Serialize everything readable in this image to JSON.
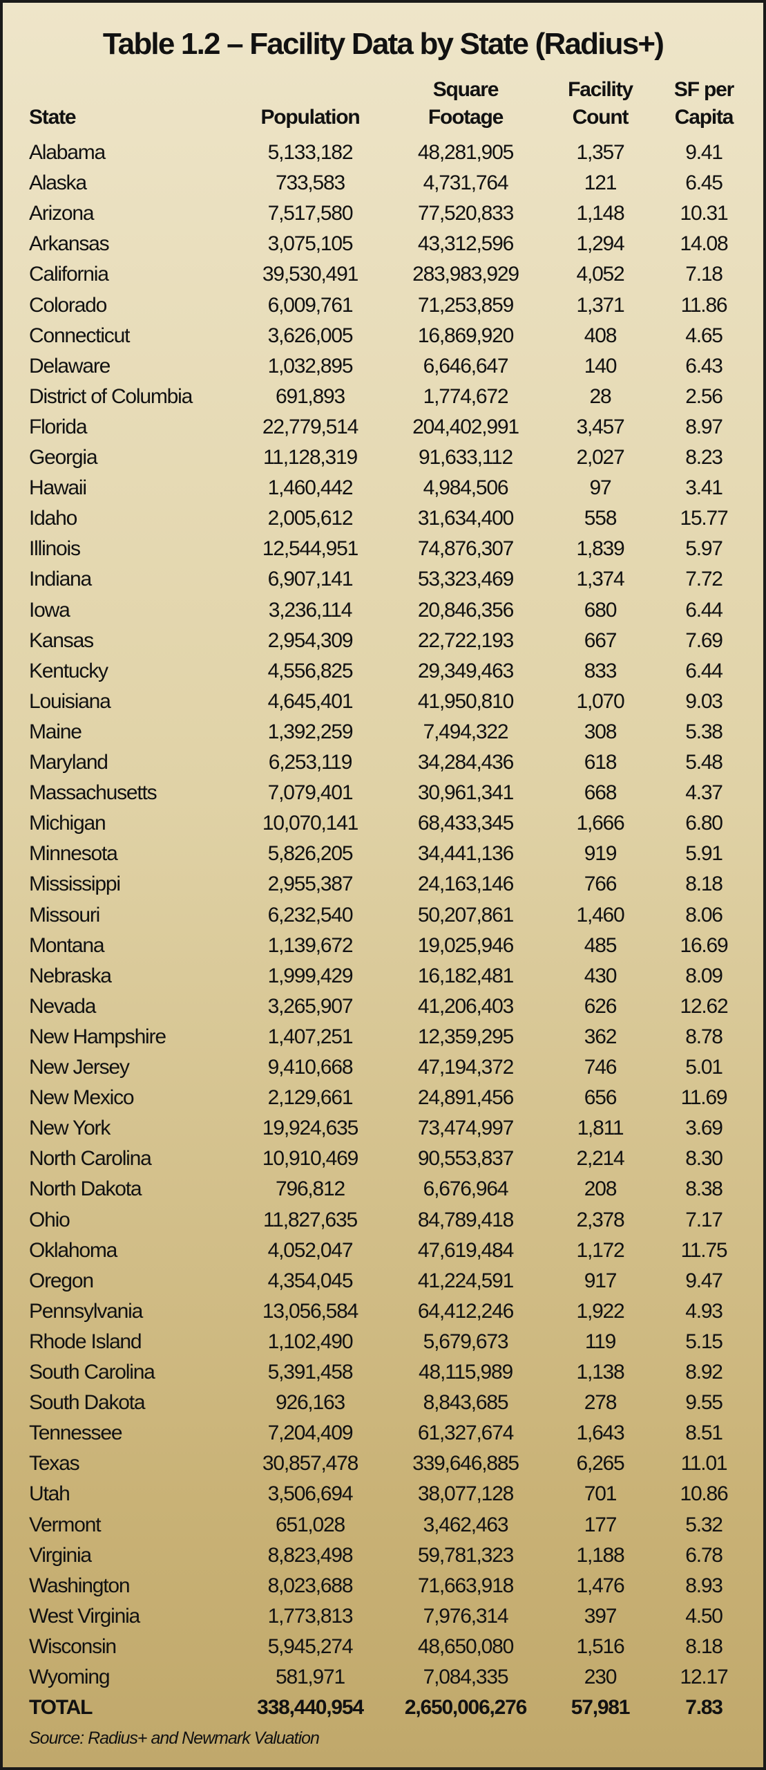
{
  "title": "Table 1.2 – Facility Data by State (Radius+)",
  "headers": {
    "state": "State",
    "population": "Population",
    "square_footage": [
      "Square",
      "Footage"
    ],
    "facility_count": [
      "Facility",
      "Count"
    ],
    "sf_per_capita": [
      "SF per",
      "Capita"
    ]
  },
  "rows": [
    [
      "Alabama",
      "5,133,182",
      "48,281,905",
      "1,357",
      "9.41"
    ],
    [
      "Alaska",
      "733,583",
      "4,731,764",
      "121",
      "6.45"
    ],
    [
      "Arizona",
      "7,517,580",
      "77,520,833",
      "1,148",
      "10.31"
    ],
    [
      "Arkansas",
      "3,075,105",
      "43,312,596",
      "1,294",
      "14.08"
    ],
    [
      "California",
      "39,530,491",
      "283,983,929",
      "4,052",
      "7.18"
    ],
    [
      "Colorado",
      "6,009,761",
      "71,253,859",
      "1,371",
      "11.86"
    ],
    [
      "Connecticut",
      "3,626,005",
      "16,869,920",
      "408",
      "4.65"
    ],
    [
      "Delaware",
      "1,032,895",
      "6,646,647",
      "140",
      "6.43"
    ],
    [
      "District of Columbia",
      "691,893",
      "1,774,672",
      "28",
      "2.56"
    ],
    [
      "Florida",
      "22,779,514",
      "204,402,991",
      "3,457",
      "8.97"
    ],
    [
      "Georgia",
      "11,128,319",
      "91,633,112",
      "2,027",
      "8.23"
    ],
    [
      "Hawaii",
      "1,460,442",
      "4,984,506",
      "97",
      "3.41"
    ],
    [
      "Idaho",
      "2,005,612",
      "31,634,400",
      "558",
      "15.77"
    ],
    [
      "Illinois",
      "12,544,951",
      "74,876,307",
      "1,839",
      "5.97"
    ],
    [
      "Indiana",
      "6,907,141",
      "53,323,469",
      "1,374",
      "7.72"
    ],
    [
      "Iowa",
      "3,236,114",
      "20,846,356",
      "680",
      "6.44"
    ],
    [
      "Kansas",
      "2,954,309",
      "22,722,193",
      "667",
      "7.69"
    ],
    [
      "Kentucky",
      "4,556,825",
      "29,349,463",
      "833",
      "6.44"
    ],
    [
      "Louisiana",
      "4,645,401",
      "41,950,810",
      "1,070",
      "9.03"
    ],
    [
      "Maine",
      "1,392,259",
      "7,494,322",
      "308",
      "5.38"
    ],
    [
      "Maryland",
      "6,253,119",
      "34,284,436",
      "618",
      "5.48"
    ],
    [
      "Massachusetts",
      "7,079,401",
      "30,961,341",
      "668",
      "4.37"
    ],
    [
      "Michigan",
      "10,070,141",
      "68,433,345",
      "1,666",
      "6.80"
    ],
    [
      "Minnesota",
      "5,826,205",
      "34,441,136",
      "919",
      "5.91"
    ],
    [
      "Mississippi",
      "2,955,387",
      "24,163,146",
      "766",
      "8.18"
    ],
    [
      "Missouri",
      "6,232,540",
      "50,207,861",
      "1,460",
      "8.06"
    ],
    [
      "Montana",
      "1,139,672",
      "19,025,946",
      "485",
      "16.69"
    ],
    [
      "Nebraska",
      "1,999,429",
      "16,182,481",
      "430",
      "8.09"
    ],
    [
      "Nevada",
      "3,265,907",
      "41,206,403",
      "626",
      "12.62"
    ],
    [
      "New Hampshire",
      "1,407,251",
      "12,359,295",
      "362",
      "8.78"
    ],
    [
      "New Jersey",
      "9,410,668",
      "47,194,372",
      "746",
      "5.01"
    ],
    [
      "New Mexico",
      "2,129,661",
      "24,891,456",
      "656",
      "11.69"
    ],
    [
      "New York",
      "19,924,635",
      "73,474,997",
      "1,811",
      "3.69"
    ],
    [
      "North Carolina",
      "10,910,469",
      "90,553,837",
      "2,214",
      "8.30"
    ],
    [
      "North Dakota",
      "796,812",
      "6,676,964",
      "208",
      "8.38"
    ],
    [
      "Ohio",
      "11,827,635",
      "84,789,418",
      "2,378",
      "7.17"
    ],
    [
      "Oklahoma",
      "4,052,047",
      "47,619,484",
      "1,172",
      "11.75"
    ],
    [
      "Oregon",
      "4,354,045",
      "41,224,591",
      "917",
      "9.47"
    ],
    [
      "Pennsylvania",
      "13,056,584",
      "64,412,246",
      "1,922",
      "4.93"
    ],
    [
      "Rhode Island",
      "1,102,490",
      "5,679,673",
      "119",
      "5.15"
    ],
    [
      "South Carolina",
      "5,391,458",
      "48,115,989",
      "1,138",
      "8.92"
    ],
    [
      "South Dakota",
      "926,163",
      "8,843,685",
      "278",
      "9.55"
    ],
    [
      "Tennessee",
      "7,204,409",
      "61,327,674",
      "1,643",
      "8.51"
    ],
    [
      "Texas",
      "30,857,478",
      "339,646,885",
      "6,265",
      "11.01"
    ],
    [
      "Utah",
      "3,506,694",
      "38,077,128",
      "701",
      "10.86"
    ],
    [
      "Vermont",
      "651,028",
      "3,462,463",
      "177",
      "5.32"
    ],
    [
      "Virginia",
      "8,823,498",
      "59,781,323",
      "1,188",
      "6.78"
    ],
    [
      "Washington",
      "8,023,688",
      "71,663,918",
      "1,476",
      "8.93"
    ],
    [
      "West Virginia",
      "1,773,813",
      "7,976,314",
      "397",
      "4.50"
    ],
    [
      "Wisconsin",
      "5,945,274",
      "48,650,080",
      "1,516",
      "8.18"
    ],
    [
      "Wyoming",
      "581,971",
      "7,084,335",
      "230",
      "12.17"
    ]
  ],
  "total": [
    "TOTAL",
    "338,440,954",
    "2,650,006,276",
    "57,981",
    "7.83"
  ],
  "source": "Source: Radius+ and Newmark Valuation",
  "colors": {
    "background_top": "#eee5c9",
    "background_bottom": "#c0a86b",
    "border": "#1a1a1a",
    "text": "#111111"
  }
}
